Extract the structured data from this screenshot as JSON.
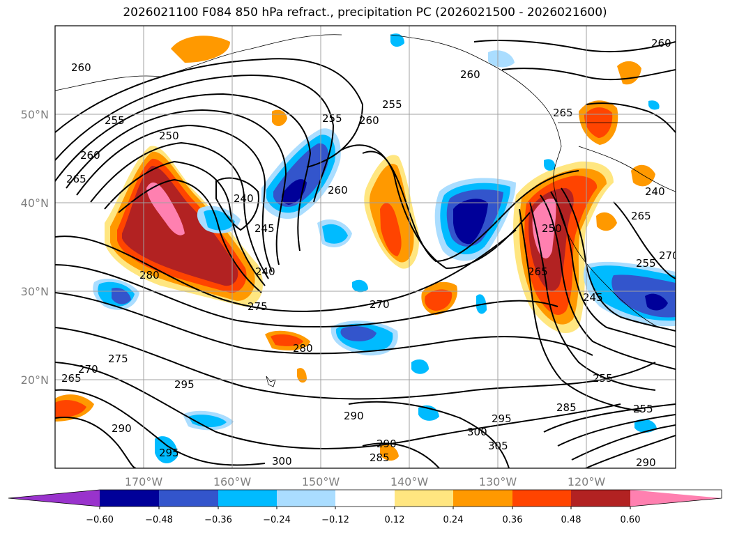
{
  "title": "2026021100 F084 850 hPa refract., precipitation PC (2026021500 - 2026021600)",
  "map": {
    "lon_range": [
      -180,
      -110
    ],
    "lat_range": [
      10,
      60
    ],
    "lat_ticks": [
      "50°N",
      "40°N",
      "30°N",
      "20°N"
    ],
    "lon_ticks": [
      "170°W",
      "160°W",
      "150°W",
      "140°W",
      "130°W",
      "120°W"
    ],
    "grid": true,
    "coastline_color": "#000000"
  },
  "contour_labels": [
    "260",
    "255",
    "260",
    "265",
    "250",
    "240",
    "245",
    "240",
    "280",
    "275",
    "255",
    "260",
    "260",
    "255",
    "265",
    "270",
    "280",
    "265",
    "270",
    "275",
    "295",
    "290",
    "295",
    "290",
    "300",
    "285",
    "290",
    "300",
    "295",
    "305",
    "285",
    "255",
    "245",
    "260",
    "265",
    "255",
    "270",
    "250",
    "255",
    "290",
    "260",
    "265",
    "240"
  ],
  "colorbar": {
    "colors": [
      "#9933cc",
      "#000099",
      "#3355cc",
      "#00bbff",
      "#aaddff",
      "#ffffff",
      "#ffe680",
      "#ff9900",
      "#ff4400",
      "#b22222",
      "#ff80b0"
    ],
    "tick_labels": [
      "−0.60",
      "−0.48",
      "−0.36",
      "−0.24",
      "−0.12",
      "0.12",
      "0.24",
      "0.36",
      "0.48",
      "0.60"
    ]
  }
}
